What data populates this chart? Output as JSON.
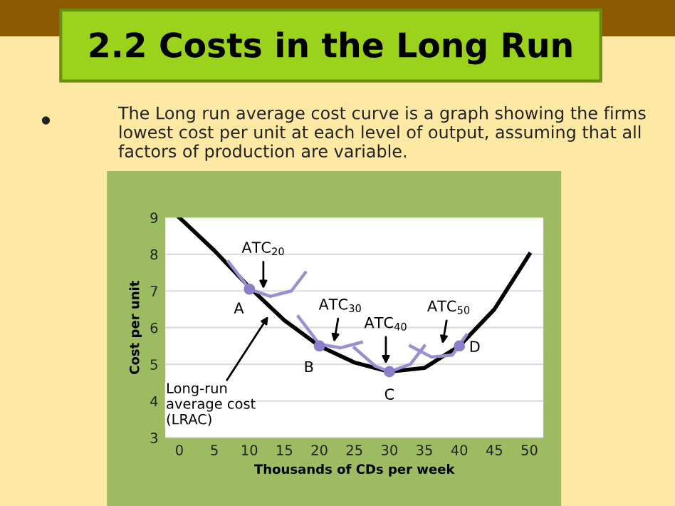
{
  "chart_data": {
    "type": "line",
    "title": "2.2 Costs in the Long Run",
    "subtitle": "The Long run average cost curve is a graph showing the firms lowest cost per unit at each level of output, assuming that all factors of production are variable.",
    "xlabel": "Thousands of CDs per week",
    "ylabel": "Cost per unit",
    "xlim": [
      -2,
      52
    ],
    "ylim": [
      3,
      9
    ],
    "xticks": [
      0,
      5,
      10,
      15,
      20,
      25,
      30,
      35,
      40,
      45,
      50
    ],
    "yticks": [
      3,
      4,
      5,
      6,
      7,
      8,
      9
    ],
    "grid": "y",
    "legend": false,
    "line_style": "solid",
    "series": [
      {
        "color": "#000000",
        "x": [
          0,
          5,
          10,
          15,
          20,
          25,
          30,
          35,
          40,
          45,
          50
        ],
        "values": [
          9.0,
          8.1,
          7.1,
          6.2,
          5.5,
          5.05,
          4.8,
          4.9,
          5.5,
          6.5,
          8.0
        ]
      },
      {
        "color": "#9a8fd0",
        "x": [
          7,
          10,
          13,
          16,
          18
        ],
        "values": [
          7.8,
          7.05,
          6.85,
          7.0,
          7.5
        ]
      },
      {
        "color": "#9a8fd0",
        "x": [
          17,
          20,
          23,
          26
        ],
        "values": [
          6.3,
          5.55,
          5.45,
          5.6
        ]
      },
      {
        "color": "#9a8fd0",
        "x": [
          25,
          28,
          30,
          33,
          35
        ],
        "values": [
          5.45,
          4.95,
          4.8,
          5.0,
          5.5
        ]
      },
      {
        "color": "#9a8fd0",
        "x": [
          33,
          36,
          39,
          41
        ],
        "values": [
          5.5,
          5.2,
          5.25,
          5.8
        ]
      },
      {
        "type": "scatter",
        "marker": "circle",
        "color": "#8a7fc8",
        "x": [
          10,
          20,
          30,
          40
        ],
        "values": [
          7.05,
          5.5,
          4.8,
          5.5
        ]
      }
    ],
    "annotations": [
      {
        "text": "ATC$_{20}$",
        "x": 12,
        "y": 6.95
      },
      {
        "text": "ATC$_{30}$",
        "x": 22,
        "y": 5.5
      },
      {
        "text": "ATC$_{40}$",
        "x": 29.5,
        "y": 4.9
      },
      {
        "text": "ATC$_{50}$",
        "x": 37.5,
        "y": 5.45
      },
      {
        "text": "A",
        "x": 10,
        "y": 7.05
      },
      {
        "text": "B",
        "x": 20,
        "y": 5.5
      },
      {
        "text": "C",
        "x": 30,
        "y": 4.8
      },
      {
        "text": "D",
        "x": 40,
        "y": 5.5
      },
      {
        "text": "Long-run\naverage cost\n(LRAC)",
        "x": 13,
        "y": 6.4
      }
    ]
  }
}
